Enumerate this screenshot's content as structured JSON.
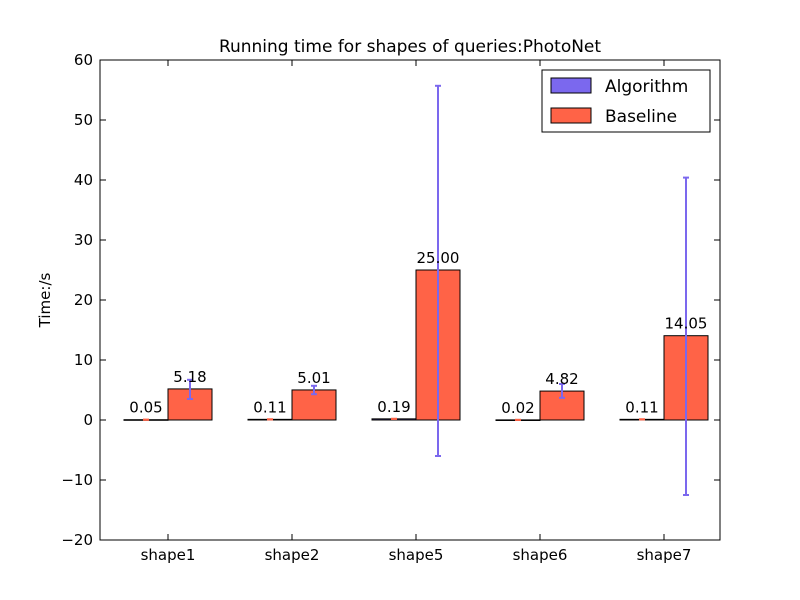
{
  "chart_data": {
    "type": "bar",
    "title": "Running time for shapes of queries:PhotoNet",
    "xlabel": "",
    "ylabel": "Time:/s",
    "ylim": [
      -20,
      60
    ],
    "yticks": [
      -20,
      -10,
      0,
      10,
      20,
      30,
      40,
      50,
      60
    ],
    "ytick_labels": [
      "−20",
      "−10",
      "0",
      "10",
      "20",
      "30",
      "40",
      "50",
      "60"
    ],
    "categories": [
      "shape1",
      "shape2",
      "shape5",
      "shape6",
      "shape7"
    ],
    "grid": false,
    "legend_position": "top-right",
    "series": [
      {
        "name": "Algorithm",
        "color": "#7b68ee",
        "values": [
          0.05,
          0.11,
          0.19,
          0.02,
          0.11
        ],
        "labels": [
          "0.05",
          "0.11",
          "0.19",
          "0.02",
          "0.11"
        ],
        "error_low": [
          0.05,
          0.11,
          0.19,
          0.02,
          0.11
        ],
        "error_high": [
          0.05,
          0.11,
          0.19,
          0.02,
          0.11
        ],
        "error_color": "#ff6347"
      },
      {
        "name": "Baseline",
        "color": "#ff6347",
        "values": [
          5.18,
          5.01,
          25.0,
          4.82,
          14.05
        ],
        "labels": [
          "5.18",
          "5.01",
          "25.00",
          "4.82",
          "14.05"
        ],
        "error_low": [
          3.5,
          4.3,
          -6.0,
          3.7,
          -12.5
        ],
        "error_high": [
          6.7,
          5.7,
          55.7,
          6.0,
          40.4
        ],
        "error_color": "#7b68ee"
      }
    ]
  }
}
